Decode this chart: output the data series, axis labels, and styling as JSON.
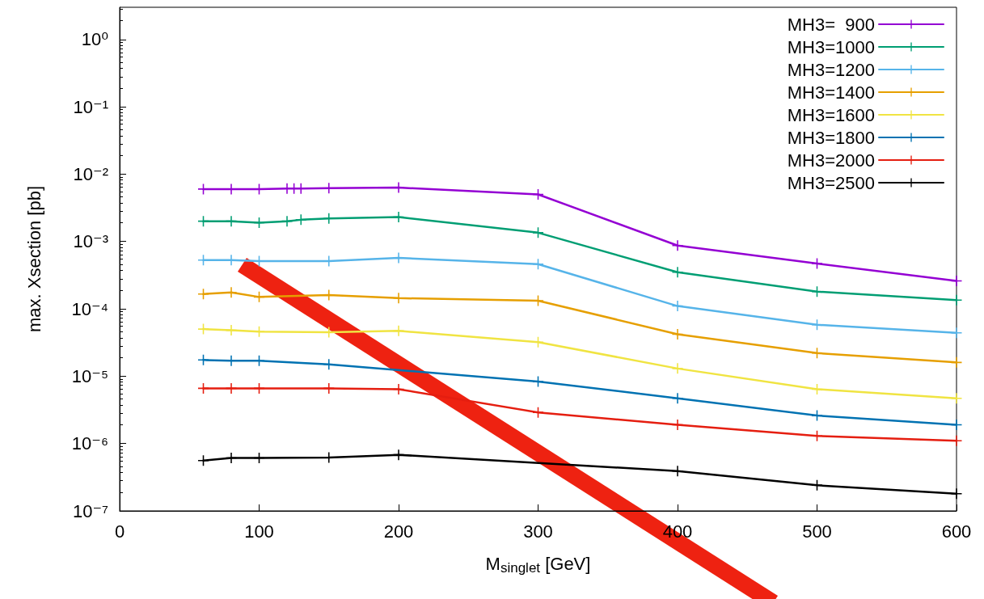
{
  "chart_data": {
    "type": "line",
    "xlabel": "M$_{singlet}$ [GeV]",
    "ylabel": "max. Xsection [pb]",
    "log": "y",
    "grid": false,
    "legend": "top right",
    "marker": "cross",
    "line_style": "solid",
    "xlim": [
      0,
      600
    ],
    "xticks": [
      0,
      100,
      200,
      300,
      400,
      500,
      600
    ],
    "ylim": [
      1e-07,
      3
    ],
    "yticks": [
      {
        "value": 1,
        "label": "10⁰"
      },
      {
        "value": 0.1,
        "label": "10⁻¹"
      },
      {
        "value": 0.01,
        "label": "10⁻²"
      },
      {
        "value": 0.001,
        "label": "10⁻³"
      },
      {
        "value": 0.0001,
        "label": "10⁻⁴"
      },
      {
        "value": 1e-05,
        "label": "10⁻⁵"
      },
      {
        "value": 1e-06,
        "label": "10⁻⁶"
      },
      {
        "value": 1e-07,
        "label": "10⁻⁷"
      }
    ],
    "series": [
      {
        "name": "MH3=  900",
        "color": "#9400d3",
        "x": [
          60,
          80,
          100,
          120,
          125,
          130,
          150,
          200,
          300,
          400,
          500,
          600
        ],
        "values": [
          0.006,
          0.006,
          0.006,
          0.0061,
          0.0061,
          0.0061,
          0.0062,
          0.0063,
          0.005,
          0.00087,
          0.00047,
          0.00026
        ]
      },
      {
        "name": "MH3=1000",
        "color": "#009e73",
        "x": [
          60,
          80,
          100,
          120,
          130,
          150,
          200,
          300,
          400,
          500,
          600
        ],
        "values": [
          0.002,
          0.002,
          0.0019,
          0.002,
          0.0021,
          0.0022,
          0.0023,
          0.00135,
          0.00035,
          0.00018,
          0.000135
        ]
      },
      {
        "name": "MH3=1200",
        "color": "#56b4e9",
        "x": [
          60,
          80,
          100,
          150,
          200,
          300,
          400,
          500,
          600
        ],
        "values": [
          0.00053,
          0.00053,
          0.00051,
          0.00051,
          0.00057,
          0.00046,
          0.00011,
          5.8e-05,
          4.4e-05
        ]
      },
      {
        "name": "MH3=1400",
        "color": "#e69f00",
        "x": [
          60,
          80,
          100,
          150,
          200,
          300,
          400,
          500,
          600
        ],
        "values": [
          0.000166,
          0.000175,
          0.00015,
          0.00016,
          0.000144,
          0.000132,
          4.2e-05,
          2.2e-05,
          1.6e-05
        ]
      },
      {
        "name": "MH3=1600",
        "color": "#f0e442",
        "x": [
          60,
          80,
          100,
          150,
          200,
          300,
          400,
          500,
          600
        ],
        "values": [
          5e-05,
          4.8e-05,
          4.6e-05,
          4.5e-05,
          4.7e-05,
          3.2e-05,
          1.3e-05,
          6.4e-06,
          4.7e-06
        ]
      },
      {
        "name": "MH3=1800",
        "color": "#0072b2",
        "x": [
          60,
          80,
          100,
          150,
          300,
          400,
          500,
          600
        ],
        "values": [
          1.74e-05,
          1.7e-05,
          1.7e-05,
          1.5e-05,
          8.3e-06,
          4.7e-06,
          2.6e-06,
          1.9e-06
        ]
      },
      {
        "name": "MH3=2000",
        "color": "#e51e10",
        "x": [
          60,
          80,
          100,
          150,
          200,
          300,
          400,
          500,
          600
        ],
        "values": [
          6.6e-06,
          6.6e-06,
          6.6e-06,
          6.6e-06,
          6.4e-06,
          2.9e-06,
          1.9e-06,
          1.3e-06,
          1.1e-06
        ]
      },
      {
        "name": "MH3=2500",
        "color": "#000000",
        "x": [
          60,
          80,
          100,
          150,
          200,
          400,
          500,
          600
        ],
        "values": [
          5.6e-07,
          6.1e-07,
          6.1e-07,
          6.2e-07,
          6.8e-07,
          3.9e-07,
          2.4e-07,
          1.8e-07
        ]
      }
    ]
  }
}
